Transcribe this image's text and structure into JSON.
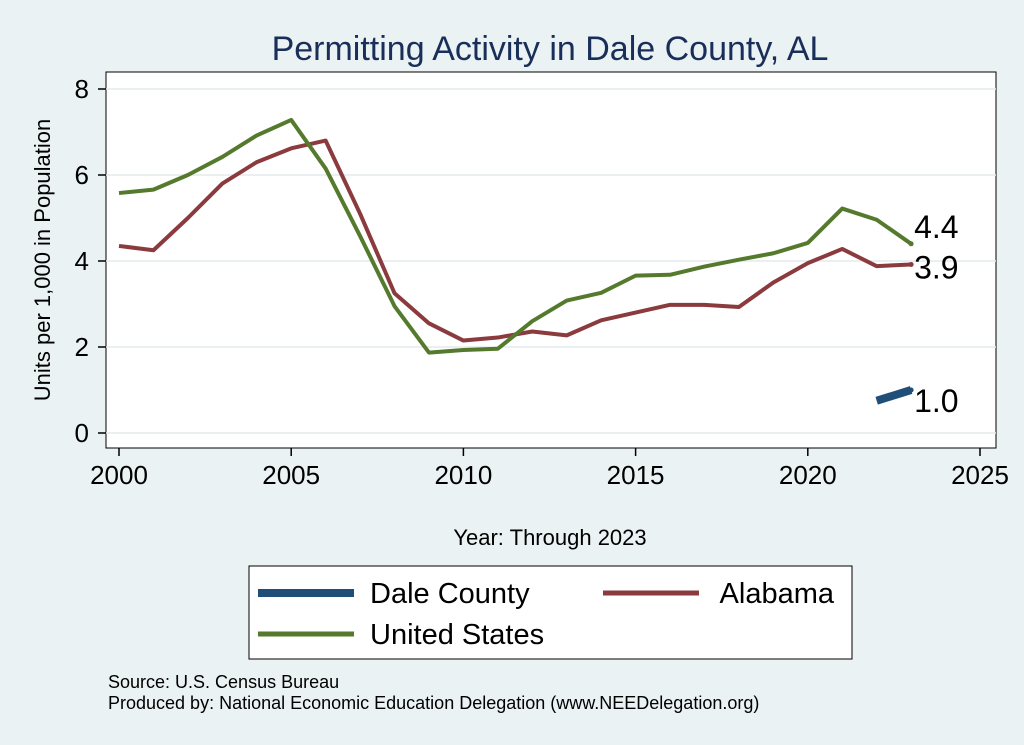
{
  "chart_data": {
    "type": "line",
    "title": "Permitting Activity in Dale County, AL",
    "xlabel": "Year: Through 2023",
    "ylabel": "Units per 1,000 in Population",
    "xlim": [
      2000,
      2025
    ],
    "ylim": [
      0,
      8
    ],
    "x_ticks": [
      2000,
      2005,
      2010,
      2015,
      2020,
      2025
    ],
    "y_ticks": [
      0,
      2,
      4,
      6,
      8
    ],
    "grid": true,
    "legend_position": "bottom",
    "series": [
      {
        "name": "Dale County",
        "color": "#1f4e79",
        "x": [
          2022,
          2023
        ],
        "values": [
          0.75,
          1.0
        ],
        "end_label": "1.0"
      },
      {
        "name": "Alabama",
        "color": "#8b3a3e",
        "x": [
          2000,
          2001,
          2002,
          2003,
          2004,
          2005,
          2006,
          2007,
          2008,
          2009,
          2010,
          2011,
          2012,
          2013,
          2014,
          2015,
          2016,
          2017,
          2018,
          2019,
          2020,
          2021,
          2022,
          2023
        ],
        "values": [
          4.35,
          4.25,
          5.0,
          5.8,
          6.3,
          6.62,
          6.8,
          5.1,
          3.25,
          2.55,
          2.15,
          2.22,
          2.36,
          2.27,
          2.62,
          2.8,
          2.98,
          2.98,
          2.93,
          3.5,
          3.95,
          4.28,
          3.88,
          3.92
        ],
        "end_label": "3.9"
      },
      {
        "name": "United States",
        "color": "#557a2d",
        "x": [
          2000,
          2001,
          2002,
          2003,
          2004,
          2005,
          2006,
          2007,
          2008,
          2009,
          2010,
          2011,
          2012,
          2013,
          2014,
          2015,
          2016,
          2017,
          2018,
          2019,
          2020,
          2021,
          2022,
          2023
        ],
        "values": [
          5.58,
          5.66,
          6.0,
          6.42,
          6.92,
          7.28,
          6.15,
          4.58,
          2.95,
          1.87,
          1.93,
          1.96,
          2.6,
          3.08,
          3.26,
          3.66,
          3.68,
          3.87,
          4.03,
          4.18,
          4.42,
          5.22,
          4.96,
          4.4
        ],
        "end_label": "4.4"
      }
    ],
    "legend_entries": [
      "Dale County",
      "Alabama",
      "United States"
    ]
  },
  "source_note": "Source: U.S. Census Bureau",
  "produced_note": "Produced by: National Economic Education Delegation (www.NEEDelegation.org)"
}
